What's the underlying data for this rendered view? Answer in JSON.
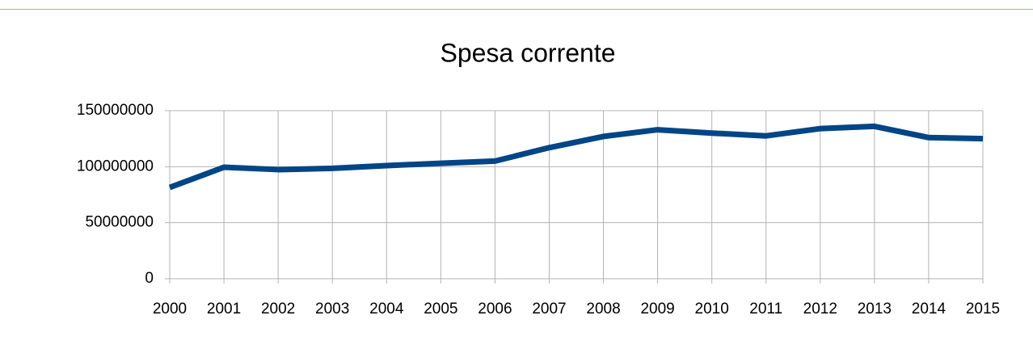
{
  "chart_data": {
    "type": "line",
    "title": "Spesa corrente",
    "x": [
      2000,
      2001,
      2002,
      2003,
      2004,
      2005,
      2006,
      2007,
      2008,
      2009,
      2010,
      2011,
      2012,
      2013,
      2014,
      2015
    ],
    "xlim": [
      2000,
      2015
    ],
    "xticks": [
      2000,
      2001,
      2002,
      2003,
      2004,
      2005,
      2006,
      2007,
      2008,
      2009,
      2010,
      2011,
      2012,
      2013,
      2014,
      2015
    ],
    "series": [
      {
        "name": "Spesa corrente",
        "color": "#004586",
        "values": [
          81500000,
          99500000,
          97400000,
          98500000,
          101000000,
          103000000,
          105000000,
          117000000,
          127000000,
          133000000,
          130000000,
          127500000,
          134000000,
          136000000,
          126000000,
          125000000
        ]
      }
    ],
    "ylim": [
      0,
      150000000
    ],
    "yticks": [
      0,
      50000000,
      100000000,
      150000000
    ],
    "grid": true
  }
}
